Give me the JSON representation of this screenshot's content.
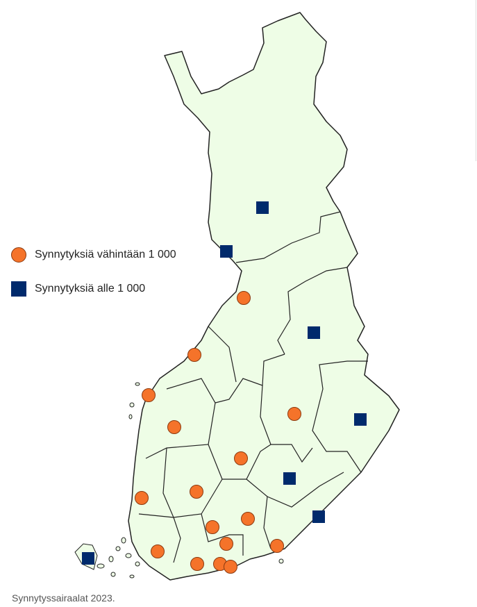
{
  "legend": {
    "items": [
      {
        "label": "Synnytyksiä vähintään 1 000",
        "symbol": "circle",
        "color": "#f5732a"
      },
      {
        "label": "Synnytyksiä alle 1 000",
        "symbol": "square",
        "color": "#002a6c"
      }
    ]
  },
  "caption": "Synnytyssairaalat 2023.",
  "map": {
    "land_color": "#eefde6",
    "border_color": "#222222",
    "counts": {
      "circle": 16,
      "square": 7
    }
  }
}
